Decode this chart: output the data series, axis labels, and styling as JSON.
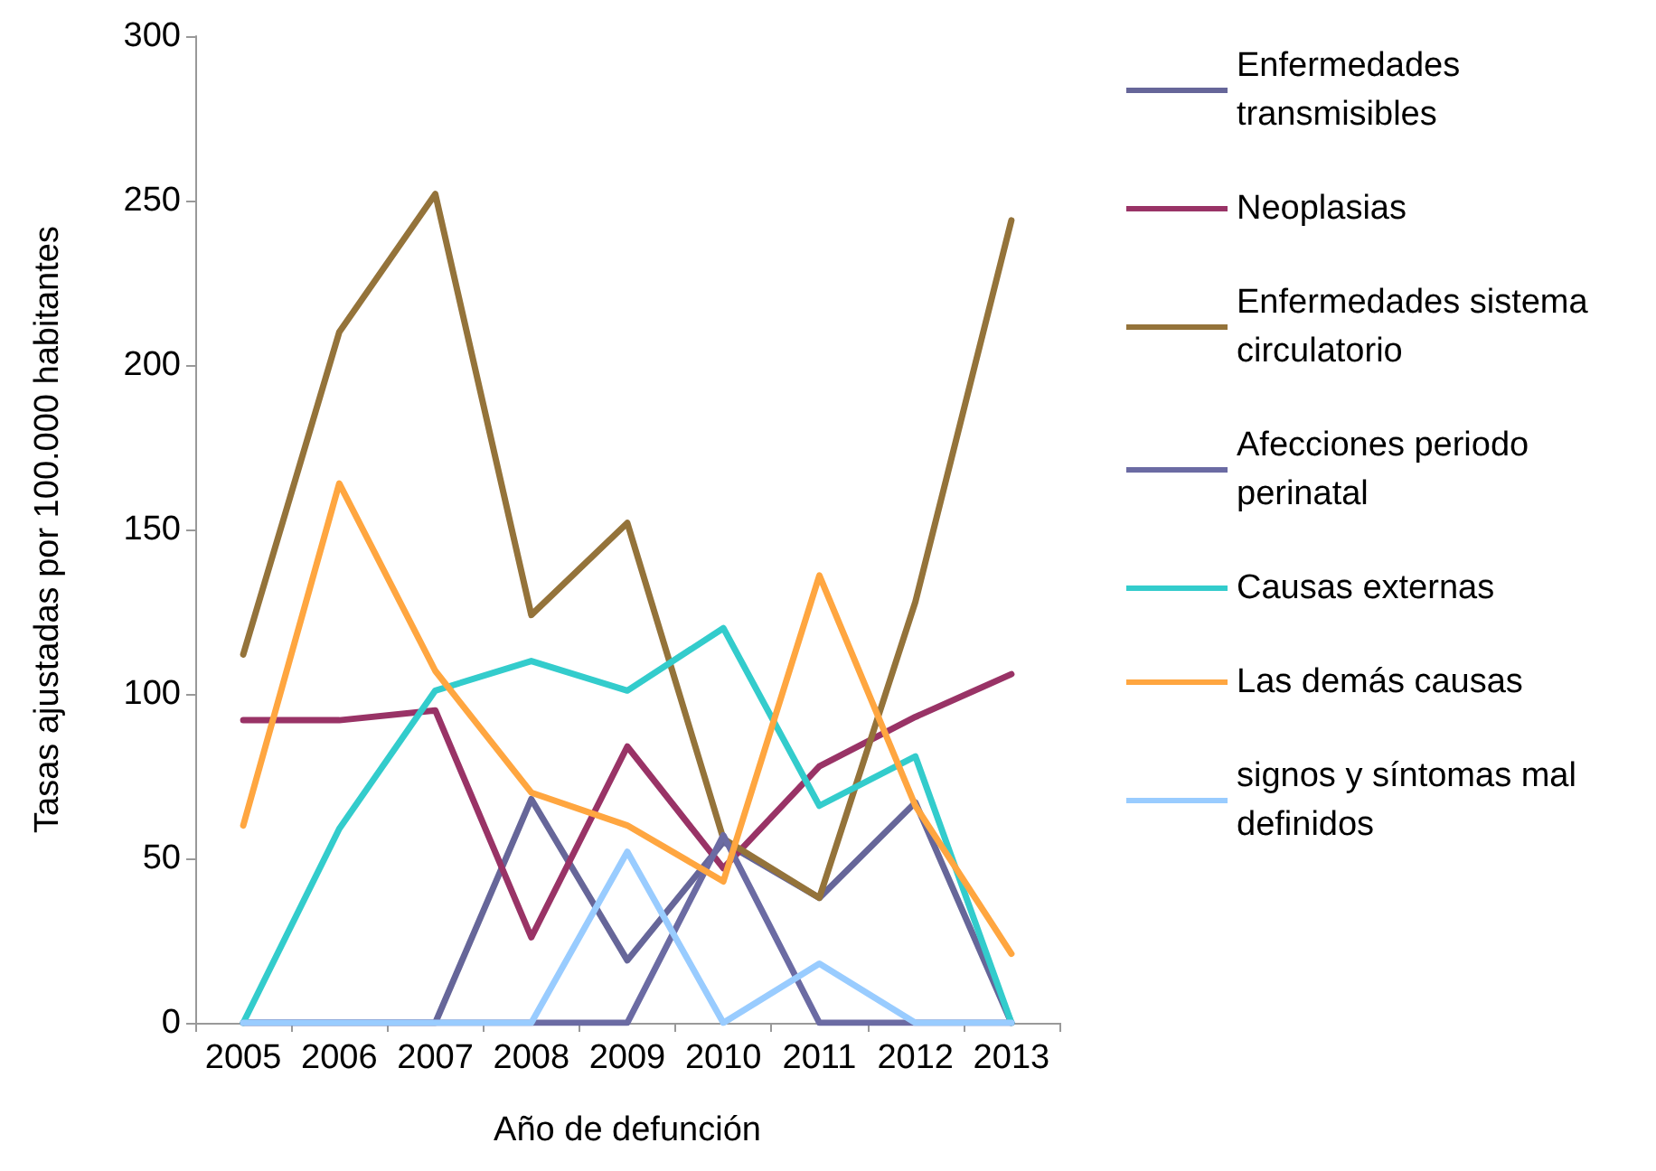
{
  "chart_data": {
    "type": "line",
    "xlabel": "Año de defunción",
    "ylabel": "Tasas ajustadas por 100.000 habitantes",
    "categories": [
      "2005",
      "2006",
      "2007",
      "2008",
      "2009",
      "2010",
      "2011",
      "2012",
      "2013"
    ],
    "ylim": [
      0,
      300
    ],
    "yticks": [
      0,
      50,
      100,
      150,
      200,
      250,
      300
    ],
    "grid": false,
    "legend": "right",
    "marker": "none",
    "line_style": "solid",
    "series": [
      {
        "name": "Enfermedades transmisibles",
        "color": "#666699",
        "values": [
          0,
          0,
          0,
          68,
          19,
          55,
          38,
          67,
          0
        ]
      },
      {
        "name": "Neoplasias",
        "color": "#993366",
        "values": [
          92,
          92,
          95,
          26,
          84,
          47,
          78,
          93,
          106
        ]
      },
      {
        "name": "Enfermedades sistema circulatorio",
        "color": "#94733a",
        "values": [
          112,
          210,
          252,
          124,
          152,
          56,
          38,
          128,
          244
        ]
      },
      {
        "name": "Afecciones periodo perinatal",
        "color": "#6b6ba3",
        "values": [
          0,
          0,
          0,
          0,
          0,
          57,
          0,
          0,
          0
        ]
      },
      {
        "name": "Causas externas",
        "color": "#33cccc",
        "values": [
          0,
          59,
          101,
          110,
          101,
          120,
          66,
          81,
          0
        ]
      },
      {
        "name": "Las demás causas",
        "color": "#ffa640",
        "values": [
          60,
          164,
          107,
          70,
          60,
          43,
          136,
          66,
          21
        ]
      },
      {
        "name": "signos y síntomas mal definidos",
        "color": "#99ccff",
        "values": [
          0,
          0,
          0,
          0,
          52,
          0,
          18,
          0,
          0
        ]
      }
    ]
  }
}
